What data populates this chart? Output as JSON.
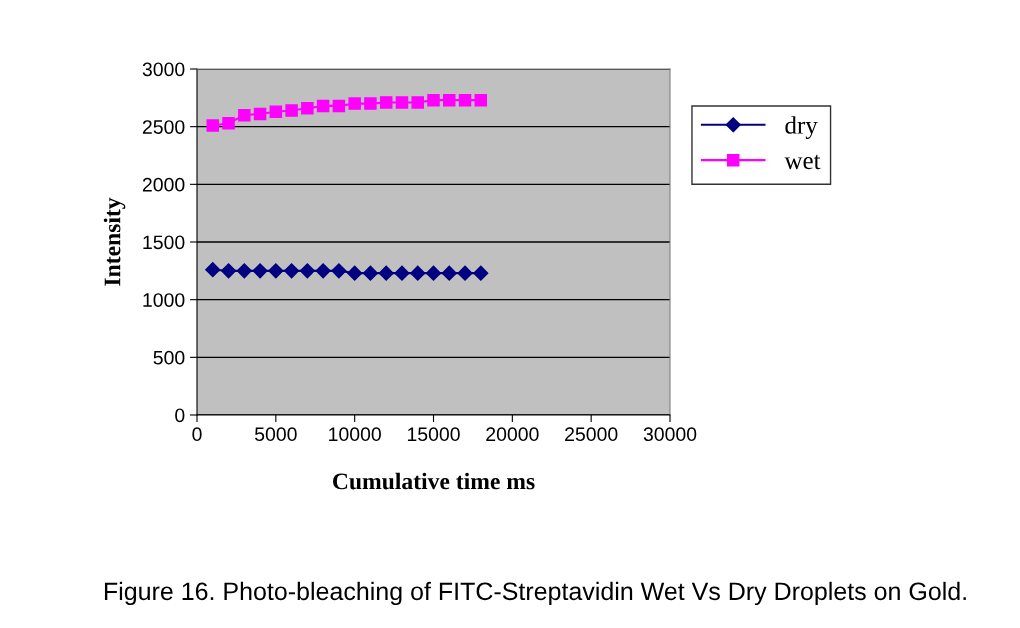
{
  "chart_data": {
    "type": "line",
    "xlabel": "Cumulative time ms",
    "ylabel": "Intensity",
    "x": [
      1000,
      2000,
      3000,
      4000,
      5000,
      6000,
      7000,
      8000,
      9000,
      10000,
      11000,
      12000,
      13000,
      14000,
      15000,
      16000,
      17000,
      18000
    ],
    "series": [
      {
        "name": "dry",
        "color": "#000080",
        "marker": "diamond",
        "values": [
          1260,
          1250,
          1250,
          1250,
          1250,
          1250,
          1250,
          1250,
          1250,
          1230,
          1230,
          1230,
          1230,
          1230,
          1230,
          1230,
          1230,
          1230
        ]
      },
      {
        "name": "wet",
        "color": "#ff00ff",
        "marker": "square",
        "values": [
          2510,
          2530,
          2600,
          2610,
          2630,
          2640,
          2660,
          2680,
          2680,
          2700,
          2700,
          2710,
          2710,
          2710,
          2730,
          2730,
          2730,
          2730
        ]
      }
    ],
    "xlim": [
      0,
      30000
    ],
    "xticks": [
      0,
      5000,
      10000,
      15000,
      20000,
      25000,
      30000
    ],
    "ylim": [
      0,
      3000
    ],
    "yticks": [
      0,
      500,
      1000,
      1500,
      2000,
      2500,
      3000
    ],
    "grid": "y",
    "legend": "right",
    "annotations": [
      "Figure 16. Photo-bleaching of FITC-Streptavidin Wet Vs Dry Droplets on Gold."
    ]
  }
}
